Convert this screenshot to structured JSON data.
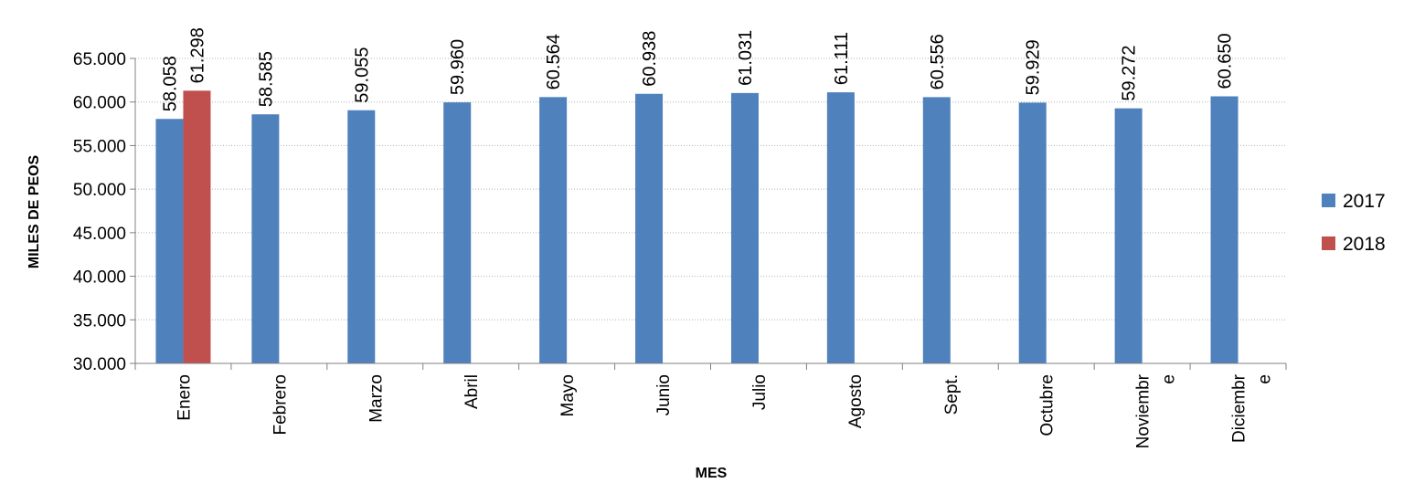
{
  "chart_data": {
    "type": "bar",
    "title": "",
    "xlabel": "MES",
    "ylabel": "MILES DE PEOS",
    "ylim": [
      30000,
      65000
    ],
    "ytick_values": [
      30000,
      35000,
      40000,
      45000,
      50000,
      55000,
      60000,
      65000
    ],
    "ytick_labels": [
      "30.000",
      "35.000",
      "40.000",
      "45.000",
      "50.000",
      "55.000",
      "60.000",
      "65.000"
    ],
    "categories": [
      "Enero",
      "Febrero",
      "Marzo",
      "Abril",
      "Mayo",
      "Junio",
      "Julio",
      "Agosto",
      "Sept.",
      "Octubre",
      "Noviembre",
      "Diciembre"
    ],
    "grid": true,
    "legend_position": "right",
    "series": [
      {
        "name": "2017",
        "color": "#4f81bd",
        "values": [
          58058,
          58585,
          59055,
          59960,
          60564,
          60938,
          61031,
          61111,
          60556,
          59929,
          59272,
          60650
        ],
        "labels": [
          "58.058",
          "58.585",
          "59.055",
          "59.960",
          "60.564",
          "60.938",
          "61.031",
          "61.111",
          "60.556",
          "59.929",
          "59.272",
          "60.650"
        ]
      },
      {
        "name": "2018",
        "color": "#c0504d",
        "values": [
          61298,
          null,
          null,
          null,
          null,
          null,
          null,
          null,
          null,
          null,
          null,
          null
        ],
        "labels": [
          "61.298",
          "",
          "",
          "",
          "",
          "",
          "",
          "",
          "",
          "",
          "",
          ""
        ]
      }
    ]
  }
}
